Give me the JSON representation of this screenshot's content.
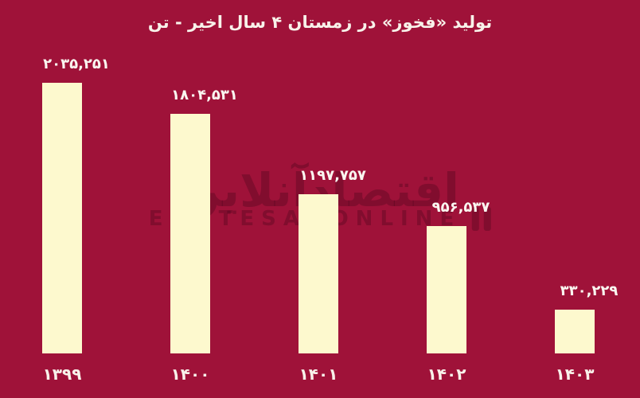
{
  "page": {
    "background_color": "#9F1239"
  },
  "chart_data": {
    "type": "bar",
    "title": "تولید «فخوز» در زمستان ۴ سال اخیر -  تن",
    "categories": [
      "۱۳۹۹",
      "۱۴۰۰",
      "۱۴۰۱",
      "۱۴۰۲",
      "۱۴۰۳"
    ],
    "values": [
      2035251,
      1804531,
      1197757,
      956537,
      330229
    ],
    "value_labels": [
      "۲۰۳۵,۲۵۱",
      "۱۸۰۴,۵۳۱",
      "۱۱۹۷,۷۵۷",
      "۹۵۶,۵۳۷",
      "۳۳۰,۲۲۹"
    ],
    "xlabel": "",
    "ylabel": "",
    "ylim": [
      0,
      2035251
    ],
    "grid": false,
    "legend": "none",
    "bar_color": "#FDF9CE",
    "background_color": "#9F1239",
    "label_color": "#F8F2EA"
  },
  "watermark": {
    "fa": "اقتصادآنلاین",
    "en": "EGHTESADONLINE"
  }
}
